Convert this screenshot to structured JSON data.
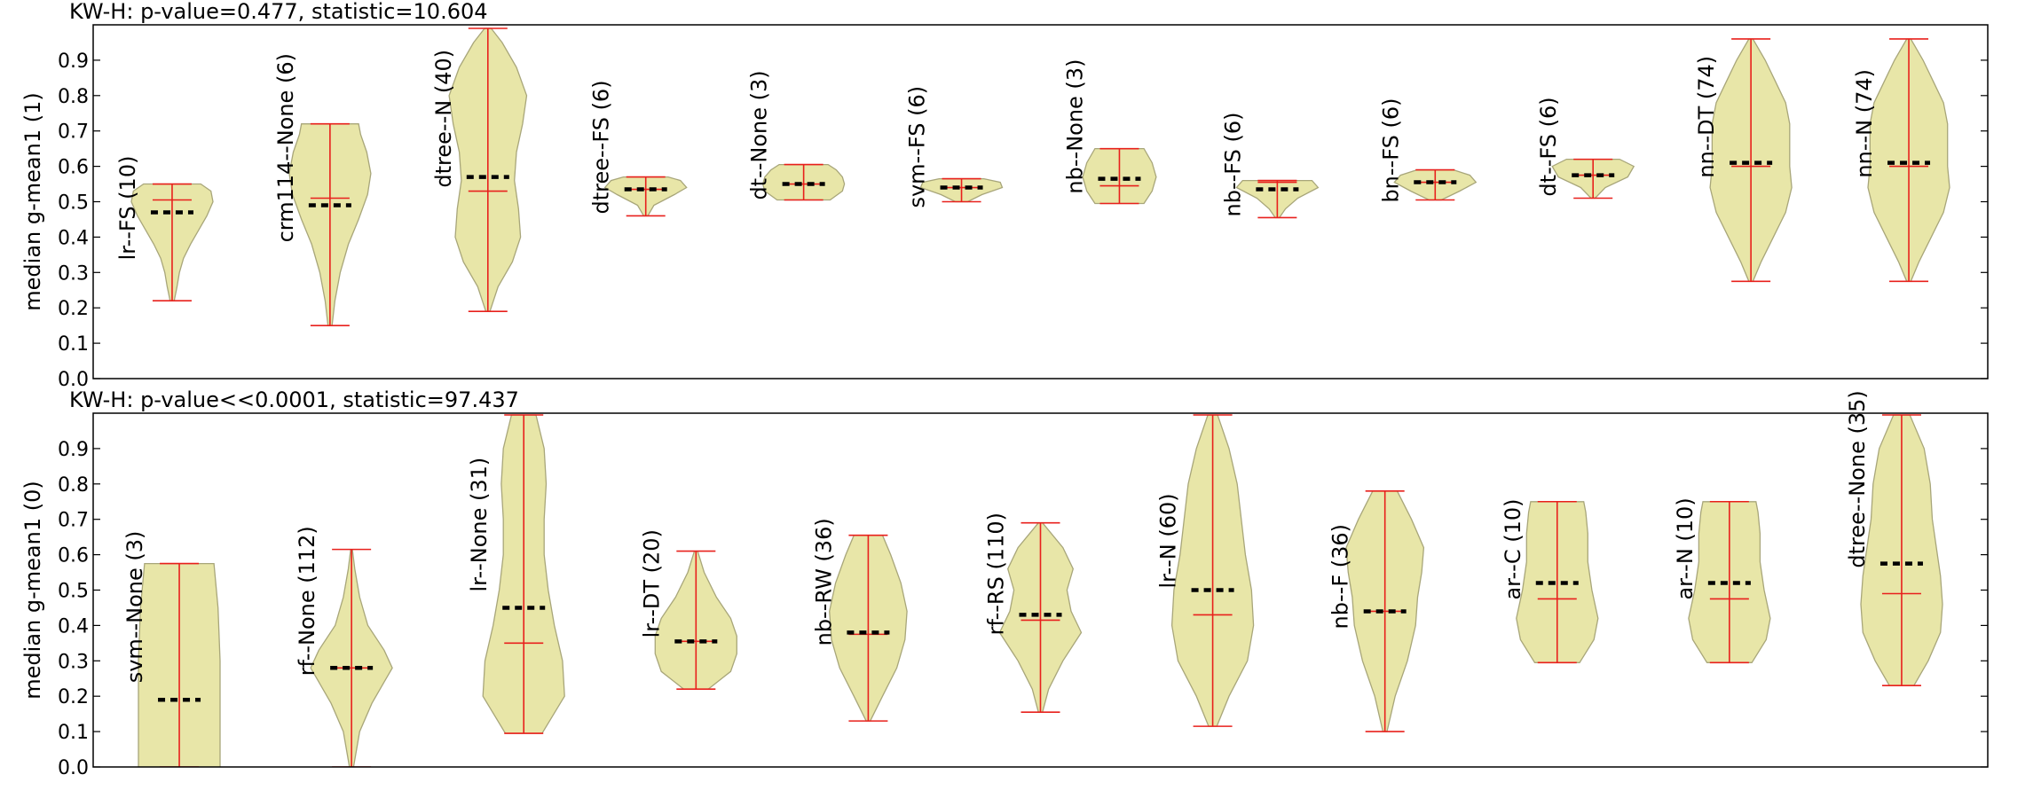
{
  "chart_data": [
    {
      "type": "violin",
      "title": "KW-H: p-value=0.477, statistic=10.604",
      "ylabel": "median g-mean1 (1)",
      "xlabel": "",
      "ylim": [
        0.0,
        1.0
      ],
      "yticks": [
        "0.0",
        "0.1",
        "0.2",
        "0.3",
        "0.4",
        "0.5",
        "0.6",
        "0.7",
        "0.8",
        "0.9"
      ],
      "grid": false,
      "colors": {
        "fill": "#e8e6a8",
        "edge": "#a8a67a",
        "whisker": "#e8201c",
        "mean": "#000000"
      },
      "series": [
        {
          "label": "lr--FS (10)",
          "min": 0.22,
          "max": 0.55,
          "median": 0.505,
          "mean": 0.47,
          "shape": [
            [
              0.22,
              0.05
            ],
            [
              0.26,
              0.12
            ],
            [
              0.3,
              0.18
            ],
            [
              0.34,
              0.28
            ],
            [
              0.38,
              0.45
            ],
            [
              0.42,
              0.65
            ],
            [
              0.46,
              0.85
            ],
            [
              0.5,
              1.0
            ],
            [
              0.53,
              0.95
            ],
            [
              0.55,
              0.7
            ]
          ]
        },
        {
          "label": "crm114--None (6)",
          "min": 0.15,
          "max": 0.72,
          "median": 0.51,
          "mean": 0.49,
          "shape": [
            [
              0.15,
              0.05
            ],
            [
              0.22,
              0.12
            ],
            [
              0.3,
              0.25
            ],
            [
              0.38,
              0.45
            ],
            [
              0.45,
              0.7
            ],
            [
              0.52,
              0.92
            ],
            [
              0.58,
              1.0
            ],
            [
              0.64,
              0.9
            ],
            [
              0.69,
              0.75
            ],
            [
              0.72,
              0.7
            ]
          ]
        },
        {
          "label": "dtree--N (40)",
          "min": 0.19,
          "max": 0.99,
          "median": 0.53,
          "mean": 0.57,
          "shape": [
            [
              0.19,
              0.05
            ],
            [
              0.26,
              0.25
            ],
            [
              0.33,
              0.6
            ],
            [
              0.4,
              0.8
            ],
            [
              0.48,
              0.75
            ],
            [
              0.56,
              0.65
            ],
            [
              0.64,
              0.7
            ],
            [
              0.72,
              0.85
            ],
            [
              0.8,
              0.95
            ],
            [
              0.88,
              0.7
            ],
            [
              0.95,
              0.35
            ],
            [
              0.99,
              0.08
            ]
          ]
        },
        {
          "label": "dtree--FS (6)",
          "min": 0.46,
          "max": 0.57,
          "median": 0.535,
          "mean": 0.535,
          "shape": [
            [
              0.46,
              0.05
            ],
            [
              0.49,
              0.2
            ],
            [
              0.52,
              0.7
            ],
            [
              0.54,
              1.0
            ],
            [
              0.56,
              0.85
            ],
            [
              0.57,
              0.55
            ]
          ]
        },
        {
          "label": "dt--None (3)",
          "min": 0.505,
          "max": 0.605,
          "median": 0.55,
          "mean": 0.55,
          "shape": [
            [
              0.505,
              0.65
            ],
            [
              0.53,
              0.95
            ],
            [
              0.55,
              1.0
            ],
            [
              0.57,
              0.95
            ],
            [
              0.59,
              0.8
            ],
            [
              0.605,
              0.6
            ]
          ]
        },
        {
          "label": "svm--FS (6)",
          "min": 0.5,
          "max": 0.565,
          "median": 0.54,
          "mean": 0.54,
          "shape": [
            [
              0.5,
              0.15
            ],
            [
              0.52,
              0.5
            ],
            [
              0.54,
              1.0
            ],
            [
              0.555,
              0.95
            ],
            [
              0.565,
              0.55
            ]
          ]
        },
        {
          "label": "nb--None (3)",
          "min": 0.495,
          "max": 0.65,
          "median": 0.545,
          "mean": 0.565,
          "shape": [
            [
              0.495,
              0.6
            ],
            [
              0.53,
              0.8
            ],
            [
              0.57,
              0.9
            ],
            [
              0.61,
              0.8
            ],
            [
              0.65,
              0.6
            ]
          ]
        },
        {
          "label": "nb--FS (6)",
          "min": 0.455,
          "max": 0.56,
          "median": 0.555,
          "mean": 0.535,
          "shape": [
            [
              0.455,
              0.05
            ],
            [
              0.48,
              0.2
            ],
            [
              0.51,
              0.5
            ],
            [
              0.54,
              1.0
            ],
            [
              0.56,
              0.85
            ]
          ]
        },
        {
          "label": "bn--FS (6)",
          "min": 0.505,
          "max": 0.59,
          "median": 0.555,
          "mean": 0.555,
          "shape": [
            [
              0.505,
              0.15
            ],
            [
              0.53,
              0.6
            ],
            [
              0.555,
              1.0
            ],
            [
              0.575,
              0.85
            ],
            [
              0.59,
              0.45
            ]
          ]
        },
        {
          "label": "dt--FS (6)",
          "min": 0.51,
          "max": 0.62,
          "median": 0.575,
          "mean": 0.575,
          "shape": [
            [
              0.51,
              0.05
            ],
            [
              0.54,
              0.3
            ],
            [
              0.57,
              0.85
            ],
            [
              0.6,
              1.0
            ],
            [
              0.62,
              0.65
            ]
          ]
        },
        {
          "label": "nn--DT (74)",
          "min": 0.275,
          "max": 0.96,
          "median": 0.6,
          "mean": 0.61,
          "shape": [
            [
              0.275,
              0.05
            ],
            [
              0.33,
              0.25
            ],
            [
              0.4,
              0.55
            ],
            [
              0.47,
              0.85
            ],
            [
              0.54,
              1.0
            ],
            [
              0.6,
              0.95
            ],
            [
              0.66,
              0.95
            ],
            [
              0.72,
              0.95
            ],
            [
              0.78,
              0.85
            ],
            [
              0.84,
              0.6
            ],
            [
              0.9,
              0.35
            ],
            [
              0.96,
              0.05
            ]
          ]
        },
        {
          "label": "nn--N (74)",
          "min": 0.275,
          "max": 0.96,
          "median": 0.6,
          "mean": 0.61,
          "shape": [
            [
              0.275,
              0.05
            ],
            [
              0.33,
              0.25
            ],
            [
              0.4,
              0.55
            ],
            [
              0.47,
              0.85
            ],
            [
              0.54,
              1.0
            ],
            [
              0.6,
              0.95
            ],
            [
              0.66,
              0.95
            ],
            [
              0.72,
              0.95
            ],
            [
              0.78,
              0.85
            ],
            [
              0.84,
              0.6
            ],
            [
              0.9,
              0.35
            ],
            [
              0.96,
              0.05
            ]
          ]
        }
      ]
    },
    {
      "type": "violin",
      "title": "KW-H: p-value<<0.0001, statistic=97.437",
      "ylabel": "median g-mean1 (0)",
      "xlabel": "",
      "ylim": [
        0.0,
        1.0
      ],
      "yticks": [
        "0.0",
        "0.1",
        "0.2",
        "0.3",
        "0.4",
        "0.5",
        "0.6",
        "0.7",
        "0.8",
        "0.9"
      ],
      "grid": false,
      "colors": {
        "fill": "#e8e6a8",
        "edge": "#a8a67a",
        "whisker": "#e8201c",
        "mean": "#000000"
      },
      "series": [
        {
          "label": "svm--None (3)",
          "min": 0.0,
          "max": 0.575,
          "median": null,
          "mean": 0.19,
          "shape": [
            [
              0.0,
              1.0
            ],
            [
              0.15,
              1.0
            ],
            [
              0.3,
              1.0
            ],
            [
              0.45,
              0.95
            ],
            [
              0.575,
              0.85
            ]
          ]
        },
        {
          "label": "rf--None (112)",
          "min": 0.0,
          "max": 0.615,
          "median": 0.28,
          "mean": 0.28,
          "shape": [
            [
              0.0,
              0.05
            ],
            [
              0.1,
              0.2
            ],
            [
              0.18,
              0.5
            ],
            [
              0.24,
              0.8
            ],
            [
              0.28,
              1.0
            ],
            [
              0.33,
              0.8
            ],
            [
              0.4,
              0.4
            ],
            [
              0.48,
              0.2
            ],
            [
              0.56,
              0.08
            ],
            [
              0.615,
              0.02
            ]
          ]
        },
        {
          "label": "lr--None (31)",
          "min": 0.095,
          "max": 0.995,
          "median": 0.35,
          "mean": 0.45,
          "shape": [
            [
              0.095,
              0.45
            ],
            [
              0.2,
              1.0
            ],
            [
              0.3,
              0.95
            ],
            [
              0.4,
              0.75
            ],
            [
              0.5,
              0.6
            ],
            [
              0.6,
              0.5
            ],
            [
              0.7,
              0.5
            ],
            [
              0.8,
              0.55
            ],
            [
              0.9,
              0.5
            ],
            [
              0.995,
              0.3
            ]
          ]
        },
        {
          "label": "lr--DT (20)",
          "min": 0.22,
          "max": 0.61,
          "median": 0.355,
          "mean": 0.355,
          "shape": [
            [
              0.22,
              0.3
            ],
            [
              0.27,
              0.85
            ],
            [
              0.32,
              1.0
            ],
            [
              0.37,
              1.0
            ],
            [
              0.42,
              0.85
            ],
            [
              0.48,
              0.5
            ],
            [
              0.55,
              0.2
            ],
            [
              0.61,
              0.04
            ]
          ]
        },
        {
          "label": "nb--RW (36)",
          "min": 0.13,
          "max": 0.655,
          "median": 0.375,
          "mean": 0.38,
          "shape": [
            [
              0.13,
              0.05
            ],
            [
              0.2,
              0.35
            ],
            [
              0.28,
              0.7
            ],
            [
              0.36,
              0.9
            ],
            [
              0.44,
              0.95
            ],
            [
              0.52,
              0.8
            ],
            [
              0.6,
              0.55
            ],
            [
              0.655,
              0.35
            ]
          ]
        },
        {
          "label": "rf--RS (110)",
          "min": 0.155,
          "max": 0.69,
          "median": 0.415,
          "mean": 0.43,
          "shape": [
            [
              0.155,
              0.05
            ],
            [
              0.22,
              0.2
            ],
            [
              0.3,
              0.55
            ],
            [
              0.38,
              1.0
            ],
            [
              0.44,
              0.75
            ],
            [
              0.5,
              0.65
            ],
            [
              0.56,
              0.8
            ],
            [
              0.62,
              0.55
            ],
            [
              0.69,
              0.05
            ]
          ]
        },
        {
          "label": "lr--N (60)",
          "min": 0.115,
          "max": 0.995,
          "median": 0.43,
          "mean": 0.5,
          "shape": [
            [
              0.115,
              0.1
            ],
            [
              0.2,
              0.4
            ],
            [
              0.3,
              0.85
            ],
            [
              0.4,
              1.0
            ],
            [
              0.5,
              0.95
            ],
            [
              0.6,
              0.8
            ],
            [
              0.7,
              0.7
            ],
            [
              0.8,
              0.6
            ],
            [
              0.9,
              0.4
            ],
            [
              0.995,
              0.12
            ]
          ]
        },
        {
          "label": "nb--F (36)",
          "min": 0.1,
          "max": 0.78,
          "median": 0.44,
          "mean": 0.44,
          "shape": [
            [
              0.1,
              0.05
            ],
            [
              0.2,
              0.25
            ],
            [
              0.3,
              0.55
            ],
            [
              0.4,
              0.75
            ],
            [
              0.48,
              0.8
            ],
            [
              0.55,
              0.9
            ],
            [
              0.62,
              0.95
            ],
            [
              0.7,
              0.65
            ],
            [
              0.78,
              0.3
            ]
          ]
        },
        {
          "label": "ar--C (10)",
          "min": 0.295,
          "max": 0.75,
          "median": 0.475,
          "mean": 0.52,
          "shape": [
            [
              0.295,
              0.55
            ],
            [
              0.36,
              0.9
            ],
            [
              0.42,
              1.0
            ],
            [
              0.5,
              0.85
            ],
            [
              0.58,
              0.75
            ],
            [
              0.66,
              0.75
            ],
            [
              0.72,
              0.7
            ],
            [
              0.75,
              0.65
            ]
          ]
        },
        {
          "label": "ar--N (10)",
          "min": 0.295,
          "max": 0.75,
          "median": 0.475,
          "mean": 0.52,
          "shape": [
            [
              0.295,
              0.55
            ],
            [
              0.36,
              0.9
            ],
            [
              0.42,
              1.0
            ],
            [
              0.5,
              0.85
            ],
            [
              0.58,
              0.75
            ],
            [
              0.66,
              0.75
            ],
            [
              0.72,
              0.7
            ],
            [
              0.75,
              0.65
            ]
          ]
        },
        {
          "label": "dtree--None (35)",
          "min": 0.23,
          "max": 0.995,
          "median": 0.49,
          "mean": 0.575,
          "shape": [
            [
              0.23,
              0.3
            ],
            [
              0.3,
              0.65
            ],
            [
              0.38,
              0.95
            ],
            [
              0.46,
              1.0
            ],
            [
              0.54,
              0.95
            ],
            [
              0.62,
              0.85
            ],
            [
              0.7,
              0.75
            ],
            [
              0.8,
              0.7
            ],
            [
              0.9,
              0.55
            ],
            [
              0.995,
              0.2
            ]
          ]
        }
      ]
    }
  ]
}
